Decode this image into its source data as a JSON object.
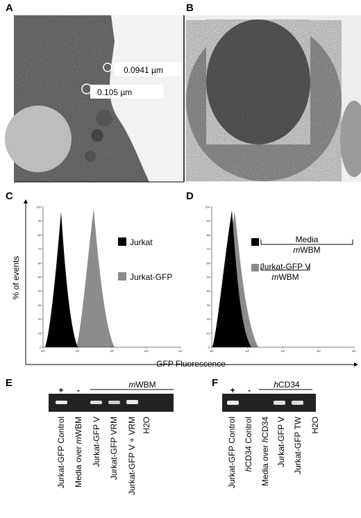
{
  "panels": {
    "A": {
      "label": "A",
      "annotations": [
        "0.0941 µm",
        "0.105 µm"
      ]
    },
    "B": {
      "label": "B"
    },
    "C": {
      "label": "C",
      "legend": [
        "Jurkat",
        "Jurkat-GFP"
      ]
    },
    "D": {
      "label": "D",
      "legend": {
        "black": {
          "parts": [
            "Media",
            "m",
            "WBM"
          ],
          "italic": [
            1
          ]
        },
        "gray": {
          "parts": [
            "Jurkat-GFP V",
            "m",
            "WBM"
          ],
          "italic": [
            1
          ]
        }
      }
    },
    "E": {
      "label": "E",
      "plus": "+",
      "minus": "-",
      "group": {
        "parts": [
          "m",
          "WBM"
        ],
        "italic": [
          0
        ]
      },
      "lanes": [
        {
          "parts": [
            "Jurkat-GFP Control"
          ],
          "italic": []
        },
        {
          "parts": [
            "Media over ",
            "m",
            "WBM"
          ],
          "italic": [
            1
          ]
        },
        {
          "parts": [
            "Jurkat-GFP V"
          ],
          "italic": []
        },
        {
          "parts": [
            "Jurkat-GFP VRM"
          ],
          "italic": []
        },
        {
          "parts": [
            "Jurkat-GFP V + VRM"
          ],
          "italic": []
        },
        {
          "parts": [
            "H2O"
          ],
          "italic": []
        }
      ]
    },
    "F": {
      "label": "F",
      "plus": "+",
      "minus": "-",
      "group": {
        "parts": [
          "h",
          "CD34"
        ],
        "italic": [
          0
        ]
      },
      "lanes": [
        {
          "parts": [
            "Jurkat-GFP Control"
          ],
          "italic": []
        },
        {
          "parts": [
            "h",
            "CD34 Control"
          ],
          "italic": [
            0
          ]
        },
        {
          "parts": [
            "Media over ",
            "h",
            "CD34"
          ],
          "italic": [
            1
          ]
        },
        {
          "parts": [
            "Jurkat-GFP V"
          ],
          "italic": []
        },
        {
          "parts": [
            "Jurkat-GFP TW"
          ],
          "italic": []
        },
        {
          "parts": [
            "H2O"
          ],
          "italic": []
        }
      ]
    }
  },
  "histogram_axes": {
    "y_label": "% of events",
    "x_label": "GFP Fluorescence",
    "yticks": [
      0,
      10,
      20,
      30,
      40,
      50,
      60,
      70,
      80,
      90,
      100
    ],
    "xtick_labels": [
      "10⁰",
      "10¹",
      "10²",
      "10³",
      "10⁴"
    ]
  }
}
